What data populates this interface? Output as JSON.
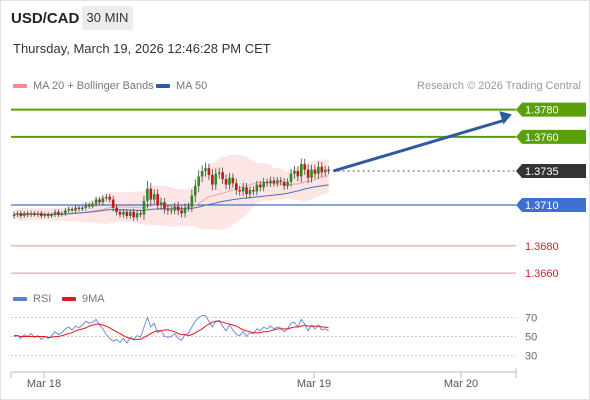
{
  "header": {
    "symbol": "USD/CAD",
    "timeframe": "30 MIN",
    "timestamp": "Thursday, March 19, 2026 12:46:28 PM CET",
    "copyright": "Research © 2026 Trading Central"
  },
  "legend": [
    {
      "label": "MA 20 + Bollinger Bands",
      "color": "#f28c8c"
    },
    {
      "label": "MA 50",
      "color": "#2d5a9e"
    }
  ],
  "rsi_legend": [
    {
      "label": "RSI",
      "color": "#5b7fd6"
    },
    {
      "label": "9MA",
      "color": "#e0191c"
    }
  ],
  "colors": {
    "up": "#2e8b1f",
    "down": "#c0181b",
    "resistance": "#5aa00a",
    "pivot": "#3f6fd1",
    "support": "#ef8f8f",
    "current": "#333333",
    "arrow": "#2e5a9e"
  },
  "chart_data": [
    {
      "type": "candlestick",
      "x_ticks": [
        "Mar 18",
        "Mar 19",
        "Mar 20"
      ],
      "levels": [
        {
          "value": 1.378,
          "label": "1.3780",
          "kind": "resistance"
        },
        {
          "value": 1.376,
          "label": "1.3760",
          "kind": "resistance"
        },
        {
          "value": 1.3735,
          "label": "1.3735",
          "kind": "current"
        },
        {
          "value": 1.371,
          "label": "1.3710",
          "kind": "pivot"
        },
        {
          "value": 1.368,
          "label": "1.3680",
          "kind": "support"
        },
        {
          "value": 1.366,
          "label": "1.3660",
          "kind": "support"
        }
      ],
      "ylim": [
        1.3655,
        1.379
      ],
      "close": [
        1.3703,
        1.3704,
        1.3702,
        1.3704,
        1.3703,
        1.3704,
        1.3703,
        1.3704,
        1.3702,
        1.3703,
        1.3702,
        1.3703,
        1.3705,
        1.3703,
        1.3704,
        1.3706,
        1.3707,
        1.3706,
        1.3708,
        1.3707,
        1.3708,
        1.371,
        1.3709,
        1.3711,
        1.3714,
        1.3712,
        1.3715,
        1.3716,
        1.3714,
        1.3708,
        1.3705,
        1.3703,
        1.3705,
        1.3702,
        1.3705,
        1.3701,
        1.3704,
        1.3703,
        1.3713,
        1.3722,
        1.3714,
        1.3718,
        1.371,
        1.3712,
        1.3707,
        1.3706,
        1.3706,
        1.3709,
        1.3706,
        1.3704,
        1.3708,
        1.3709,
        1.3717,
        1.3724,
        1.3731,
        1.3735,
        1.3737,
        1.3732,
        1.3725,
        1.3733,
        1.3734,
        1.3729,
        1.3725,
        1.373,
        1.3726,
        1.3721,
        1.372,
        1.3723,
        1.3718,
        1.3721,
        1.372,
        1.3725,
        1.3723,
        1.3727,
        1.3726,
        1.3728,
        1.3726,
        1.3728,
        1.3727,
        1.3724,
        1.3727,
        1.3733,
        1.3735,
        1.3731,
        1.374,
        1.3736,
        1.373,
        1.3736,
        1.3733,
        1.3738,
        1.3734,
        1.3736,
        1.3735
      ],
      "moves": [
        0.0006,
        0.0005,
        0.0005,
        0.0004,
        0.0005,
        0.0005,
        0.0004,
        0.0005,
        0.0005,
        0.0004,
        0.0005,
        0.0004,
        0.0005,
        0.0005,
        0.0004,
        0.0005,
        0.0005,
        0.0004,
        0.0005,
        0.0005,
        0.0004,
        0.0006,
        0.0005,
        0.0005,
        0.0006,
        0.0005,
        0.0006,
        0.0006,
        0.0006,
        0.0008,
        0.0007,
        0.0006,
        0.0006,
        0.0006,
        0.0006,
        0.0007,
        0.0007,
        0.0006,
        0.0011,
        0.0016,
        0.0012,
        0.001,
        0.001,
        0.001,
        0.0009,
        0.0009,
        0.0008,
        0.0008,
        0.001,
        0.0009,
        0.0009,
        0.0008,
        0.0012,
        0.0014,
        0.0013,
        0.0012,
        0.0012,
        0.001,
        0.0012,
        0.0011,
        0.001,
        0.001,
        0.001,
        0.001,
        0.0009,
        0.001,
        0.0009,
        0.0009,
        0.0009,
        0.0008,
        0.0008,
        0.0008,
        0.0008,
        0.0008,
        0.0007,
        0.0008,
        0.0007,
        0.0007,
        0.0007,
        0.0008,
        0.0007,
        0.001,
        0.0011,
        0.001,
        0.0012,
        0.0011,
        0.0011,
        0.001,
        0.001,
        0.0011,
        0.001,
        0.0008,
        0.0007
      ],
      "forecast": {
        "from": 1.3735,
        "to": 1.378,
        "direction": "up"
      }
    },
    {
      "type": "line",
      "name": "RSI",
      "ylim": [
        20,
        80
      ],
      "y_ticks": [
        "70",
        "50",
        "30"
      ],
      "series": [
        {
          "name": "RSI",
          "values": [
            50,
            51,
            48,
            52,
            50,
            53,
            49,
            51,
            47,
            50,
            48,
            51,
            55,
            52,
            54,
            58,
            60,
            57,
            61,
            59,
            62,
            66,
            64,
            65,
            68,
            62,
            58,
            52,
            48,
            45,
            47,
            44,
            48,
            43,
            49,
            47,
            51,
            49,
            60,
            70,
            60,
            64,
            54,
            56,
            50,
            49,
            50,
            53,
            48,
            46,
            52,
            53,
            60,
            66,
            70,
            72,
            72,
            66,
            60,
            66,
            67,
            61,
            56,
            62,
            57,
            52,
            51,
            55,
            50,
            54,
            53,
            58,
            56,
            60,
            58,
            61,
            58,
            60,
            59,
            55,
            58,
            64,
            65,
            60,
            68,
            63,
            56,
            62,
            58,
            62,
            57,
            58,
            56
          ]
        },
        {
          "name": "9MA",
          "values": [
            51,
            51,
            50,
            50,
            50,
            50,
            50,
            50,
            50,
            50,
            49,
            49,
            50,
            50,
            51,
            52,
            53,
            54,
            56,
            57,
            58,
            59,
            61,
            62,
            63,
            63,
            62,
            61,
            59,
            57,
            55,
            53,
            51,
            49,
            48,
            47,
            47,
            47,
            49,
            51,
            53,
            55,
            56,
            56,
            57,
            57,
            56,
            55,
            53,
            52,
            52,
            51,
            52,
            54,
            56,
            58,
            61,
            63,
            65,
            66,
            66,
            65,
            64,
            63,
            62,
            61,
            59,
            57,
            56,
            55,
            54,
            54,
            54,
            55,
            55,
            56,
            57,
            58,
            58,
            58,
            58,
            59,
            60,
            60,
            61,
            62,
            61,
            61,
            61,
            61,
            60,
            60,
            59
          ]
        }
      ]
    }
  ]
}
